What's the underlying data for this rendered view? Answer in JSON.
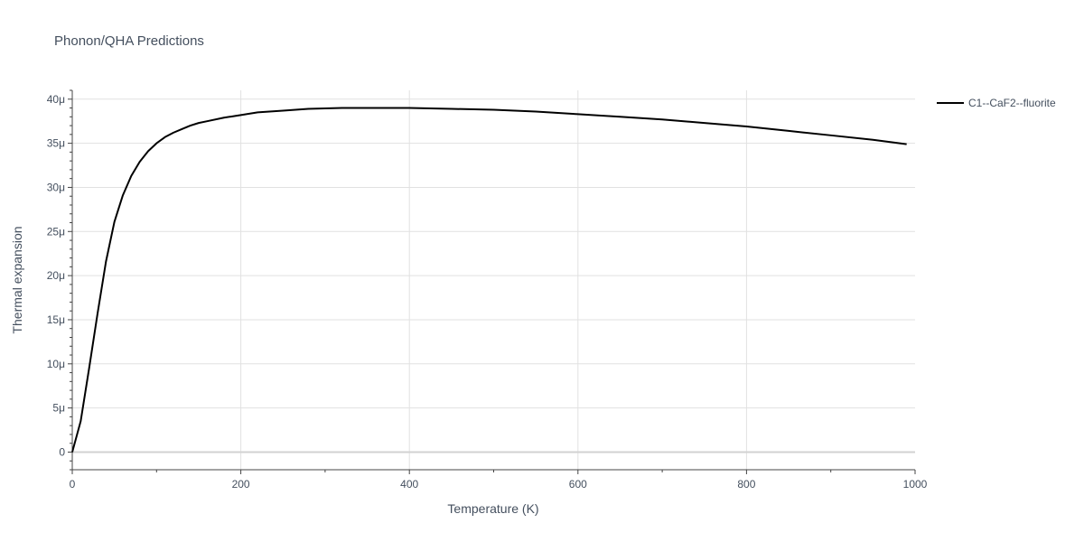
{
  "chart_data": {
    "type": "line",
    "title": "Phonon/QHA Predictions",
    "xlabel": "Temperature (K)",
    "ylabel": "Thermal expansion",
    "xlim": [
      0,
      1000
    ],
    "ylim": [
      -2e-06,
      4.1e-05
    ],
    "x_ticks": [
      {
        "value": 0,
        "label": "0"
      },
      {
        "value": 200,
        "label": "200"
      },
      {
        "value": 400,
        "label": "400"
      },
      {
        "value": 600,
        "label": "600"
      },
      {
        "value": 800,
        "label": "800"
      },
      {
        "value": 1000,
        "label": "1000"
      }
    ],
    "y_ticks": [
      {
        "value": 0,
        "label": "0"
      },
      {
        "value": 5e-06,
        "label": "5μ"
      },
      {
        "value": 1e-05,
        "label": "10μ"
      },
      {
        "value": 1.5e-05,
        "label": "15μ"
      },
      {
        "value": 2e-05,
        "label": "20μ"
      },
      {
        "value": 2.5e-05,
        "label": "25μ"
      },
      {
        "value": 3e-05,
        "label": "30μ"
      },
      {
        "value": 3.5e-05,
        "label": "35μ"
      },
      {
        "value": 4e-05,
        "label": "40μ"
      }
    ],
    "grid": true,
    "legend_position": "top-right",
    "series": [
      {
        "name": "C1--CaF2--fluorite",
        "color": "#000000",
        "x": [
          0,
          10,
          20,
          30,
          40,
          50,
          60,
          70,
          80,
          90,
          100,
          110,
          120,
          130,
          140,
          150,
          160,
          180,
          200,
          220,
          250,
          280,
          320,
          360,
          400,
          450,
          500,
          550,
          600,
          650,
          700,
          750,
          800,
          850,
          900,
          950,
          990
        ],
        "y": [
          0,
          3.5e-06,
          9.5e-06,
          1.57e-05,
          2.16e-05,
          2.61e-05,
          2.91e-05,
          3.13e-05,
          3.29e-05,
          3.41e-05,
          3.5e-05,
          3.57e-05,
          3.62e-05,
          3.66e-05,
          3.7e-05,
          3.73e-05,
          3.75e-05,
          3.79e-05,
          3.82e-05,
          3.85e-05,
          3.87e-05,
          3.89e-05,
          3.9e-05,
          3.9e-05,
          3.9e-05,
          3.89e-05,
          3.88e-05,
          3.86e-05,
          3.83e-05,
          3.8e-05,
          3.77e-05,
          3.73e-05,
          3.69e-05,
          3.64e-05,
          3.59e-05,
          3.54e-05,
          3.49e-05
        ]
      }
    ]
  }
}
